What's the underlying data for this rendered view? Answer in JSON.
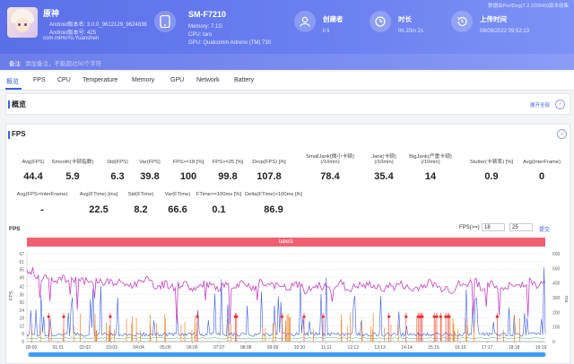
{
  "header": {
    "game_name": "原神",
    "android_version_name": "Android版本名: 3.0.0_9612129_9624836",
    "android_version_code": "Android版本号: 425",
    "package_name": "com.miHoYo.Yuanshen",
    "device_model": "SM-F7210",
    "memory": "Memory: 7.1G",
    "cpu": "CPU: taro",
    "gpu": "GPU: Qualcomm Adreno (TM) 730",
    "creator_label": "创建者",
    "creator_value": "li li",
    "duration_label": "时长",
    "duration_value": "0h 20m 2s",
    "upload_label": "上传时间",
    "upload_value": "06/09/2022 09:52:13",
    "top_right_text": "数据由PerfDog(7.2.220640)版本收集",
    "note_label": "备注",
    "note_hint": "添加备注，不能超过50个字符"
  },
  "tabs": [
    "概览",
    "FPS",
    "CPU",
    "Temperature",
    "Memory",
    "GPU",
    "Network",
    "Battery"
  ],
  "overview": {
    "title": "概览",
    "expand": "展开全部"
  },
  "fps_section": {
    "title": "FPS",
    "metrics_row1": [
      {
        "label": "Avg(FPS)",
        "value": "44.4"
      },
      {
        "label": "Smooth(卡顿指数)",
        "value": "5.9"
      },
      {
        "label": "Std(FPS)",
        "value": "6.3"
      },
      {
        "label": "Var(FPS)",
        "value": "39.8"
      },
      {
        "label": "FPS>=18 [%]",
        "value": "100"
      },
      {
        "label": "FPS>=25 [%]",
        "value": "99.8"
      },
      {
        "label": "Drop(FPS) [/h]",
        "value": "107.8"
      },
      {
        "label": "SmallJank(微小卡顿)\n(/10min)",
        "value": "78.4"
      },
      {
        "label": "Jank(卡顿)\n(/10min)",
        "value": "35.4"
      },
      {
        "label": "BigJank(严重卡顿)\n(/10min)",
        "value": "14"
      },
      {
        "label": "Stutter(卡顿率) [%]",
        "value": "0.9"
      },
      {
        "label": "Avg(InterFrame)",
        "value": "0"
      }
    ],
    "metrics_row2": [
      {
        "label": "Avg(FPS>InterFrame)",
        "value": "-"
      },
      {
        "label": "Avg(FTime) [ms]",
        "value": "22.5"
      },
      {
        "label": "Std(FTime)",
        "value": "8.2"
      },
      {
        "label": "Var(FTime)",
        "value": "66.6"
      },
      {
        "label": "FTime>=100ms [%]",
        "value": "0.1"
      },
      {
        "label": "Delta(FTime)>100ms [/h]",
        "value": "86.9"
      }
    ],
    "chart_title": "FPS",
    "fps_threshold_label": "FPS(>=)",
    "fps_threshold_1": "18",
    "fps_threshold_2": "25",
    "apply_label": "提交",
    "label_bar": "label1"
  },
  "chart_data": {
    "type": "line",
    "title": "FPS",
    "x_ticks": [
      "00:00",
      "01:01",
      "02:02",
      "03:03",
      "04:04",
      "05:05",
      "06:06",
      "07:07",
      "08:08",
      "09:09",
      "10:10",
      "11:11",
      "12:12",
      "13:13",
      "14:14",
      "15:15",
      "16:16",
      "17:17",
      "18:18",
      "19:19"
    ],
    "y_left_ticks": [
      0,
      6,
      12,
      18,
      24,
      30,
      36,
      42,
      49,
      55,
      61,
      67
    ],
    "y_right_ticks": [
      0,
      100,
      200,
      300,
      400,
      500,
      600
    ],
    "ylabel_left": "FPS",
    "ylabel_right": "ms",
    "ylim": [
      0,
      67
    ],
    "series": [
      {
        "name": "FPS",
        "color": "#c540c4",
        "values": [
          55,
          54,
          48,
          50,
          49,
          47,
          48,
          47,
          48,
          47,
          46,
          44,
          47,
          45,
          46,
          44,
          45,
          44,
          42,
          45,
          48,
          46,
          42,
          43,
          44,
          41,
          43,
          45,
          41,
          40,
          43,
          44,
          42,
          38,
          44,
          40,
          42,
          44,
          43,
          41,
          46,
          43,
          44,
          42,
          41,
          40,
          44,
          42,
          38,
          41,
          43,
          42,
          40,
          43,
          45,
          39,
          41,
          43,
          42,
          44,
          41,
          40,
          43,
          41,
          44,
          42,
          39,
          41,
          43,
          45,
          44,
          40,
          42,
          38,
          44,
          42,
          45,
          47,
          41,
          42,
          44,
          40,
          39,
          43,
          42,
          44,
          46,
          45,
          42,
          48
        ]
      },
      {
        "name": "Jank",
        "color": "#f2801f"
      },
      {
        "name": "BigJank",
        "color": "#f03030"
      },
      {
        "name": "FTime",
        "color": "#3c5de8"
      },
      {
        "name": "Stutter",
        "color": "#2fb24a"
      }
    ]
  }
}
